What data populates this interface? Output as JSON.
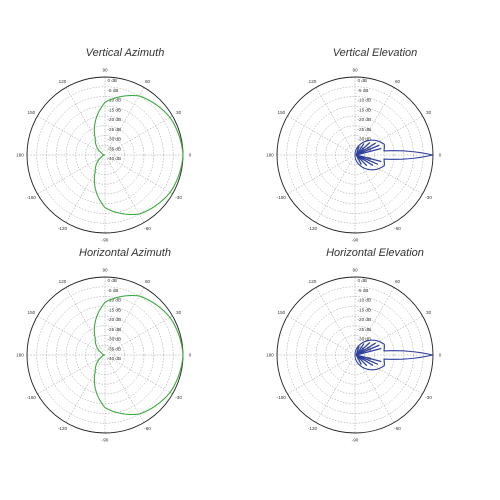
{
  "chart_data": [
    {
      "type": "polar",
      "title": "Vertical Azimuth",
      "color": "#3cab3c",
      "pattern": "cardioid",
      "beam_direction_deg": 0,
      "rlim_db": [
        -40,
        0
      ],
      "ring_labels": [
        "0 dB",
        "-5 dB",
        "-10 dB",
        "-15 dB",
        "-20 dB",
        "-25 dB",
        "-30 dB",
        "-35 dB",
        "-40 dB"
      ],
      "angle_ticks": [
        "0",
        "30",
        "60",
        "90",
        "120",
        "150",
        "180",
        "-150",
        "-120",
        "-90",
        "-60",
        "-30"
      ],
      "series": [
        {
          "points": [
            {
              "angle_deg": 0,
              "gain_db": 0
            },
            {
              "angle_deg": 30,
              "gain_db": -1.5
            },
            {
              "angle_deg": 60,
              "gain_db": -5
            },
            {
              "angle_deg": 90,
              "gain_db": -13
            },
            {
              "angle_deg": 120,
              "gain_db": -30
            },
            {
              "angle_deg": 150,
              "gain_db": -38
            },
            {
              "angle_deg": 180,
              "gain_db": -40
            }
          ]
        }
      ]
    },
    {
      "type": "polar",
      "title": "Vertical Elevation",
      "color": "#2e3f9e",
      "pattern": "narrow-beam",
      "beam_direction_deg": 0,
      "main_beam_width_deg": 8,
      "rlim_db": [
        -40,
        0
      ],
      "ring_labels": [
        "0 dB",
        "-5 dB",
        "-10 dB",
        "-15 dB",
        "-20 dB",
        "-25 dB",
        "-30 dB",
        "-35 dB",
        "-40 dB"
      ],
      "angle_ticks": [
        "0",
        "30",
        "60",
        "90",
        "120",
        "150",
        "180",
        "-150",
        "-120",
        "-90",
        "-60",
        "-30"
      ],
      "series": [
        {
          "points": [
            {
              "angle_deg": 0,
              "gain_db": 0
            },
            {
              "angle_deg": 8,
              "gain_db": -25
            },
            {
              "angle_deg": 20,
              "gain_db": -24
            },
            {
              "angle_deg": 35,
              "gain_db": -27
            },
            {
              "angle_deg": 60,
              "gain_db": -33
            },
            {
              "angle_deg": 90,
              "gain_db": -40
            }
          ]
        }
      ]
    },
    {
      "type": "polar",
      "title": "Horizontal Azimuth",
      "color": "#3cab3c",
      "pattern": "cardioid",
      "beam_direction_deg": 0,
      "rlim_db": [
        -40,
        0
      ],
      "ring_labels": [
        "0 dB",
        "-5 dB",
        "-10 dB",
        "-15 dB",
        "-20 dB",
        "-25 dB",
        "-30 dB",
        "-35 dB",
        "-40 dB"
      ],
      "angle_ticks": [
        "0",
        "30",
        "60",
        "90",
        "120",
        "150",
        "180",
        "-150",
        "-120",
        "-90",
        "-60",
        "-30"
      ],
      "series": [
        {
          "points": [
            {
              "angle_deg": 0,
              "gain_db": 0
            },
            {
              "angle_deg": 30,
              "gain_db": -1.5
            },
            {
              "angle_deg": 60,
              "gain_db": -5
            },
            {
              "angle_deg": 90,
              "gain_db": -13
            },
            {
              "angle_deg": 120,
              "gain_db": -30
            },
            {
              "angle_deg": 150,
              "gain_db": -38
            },
            {
              "angle_deg": 180,
              "gain_db": -40
            }
          ]
        }
      ]
    },
    {
      "type": "polar",
      "title": "Horizontal Elevation",
      "color": "#2e3f9e",
      "pattern": "narrow-beam",
      "beam_direction_deg": 0,
      "main_beam_width_deg": 8,
      "rlim_db": [
        -40,
        0
      ],
      "ring_labels": [
        "0 dB",
        "-5 dB",
        "-10 dB",
        "-15 dB",
        "-20 dB",
        "-25 dB",
        "-30 dB",
        "-35 dB",
        "-40 dB"
      ],
      "angle_ticks": [
        "0",
        "30",
        "60",
        "90",
        "120",
        "150",
        "180",
        "-150",
        "-120",
        "-90",
        "-60",
        "-30"
      ],
      "series": [
        {
          "points": [
            {
              "angle_deg": 0,
              "gain_db": 0
            },
            {
              "angle_deg": 8,
              "gain_db": -25
            },
            {
              "angle_deg": 20,
              "gain_db": -24
            },
            {
              "angle_deg": 35,
              "gain_db": -27
            },
            {
              "angle_deg": 60,
              "gain_db": -33
            },
            {
              "angle_deg": 90,
              "gain_db": -40
            }
          ]
        }
      ]
    }
  ]
}
